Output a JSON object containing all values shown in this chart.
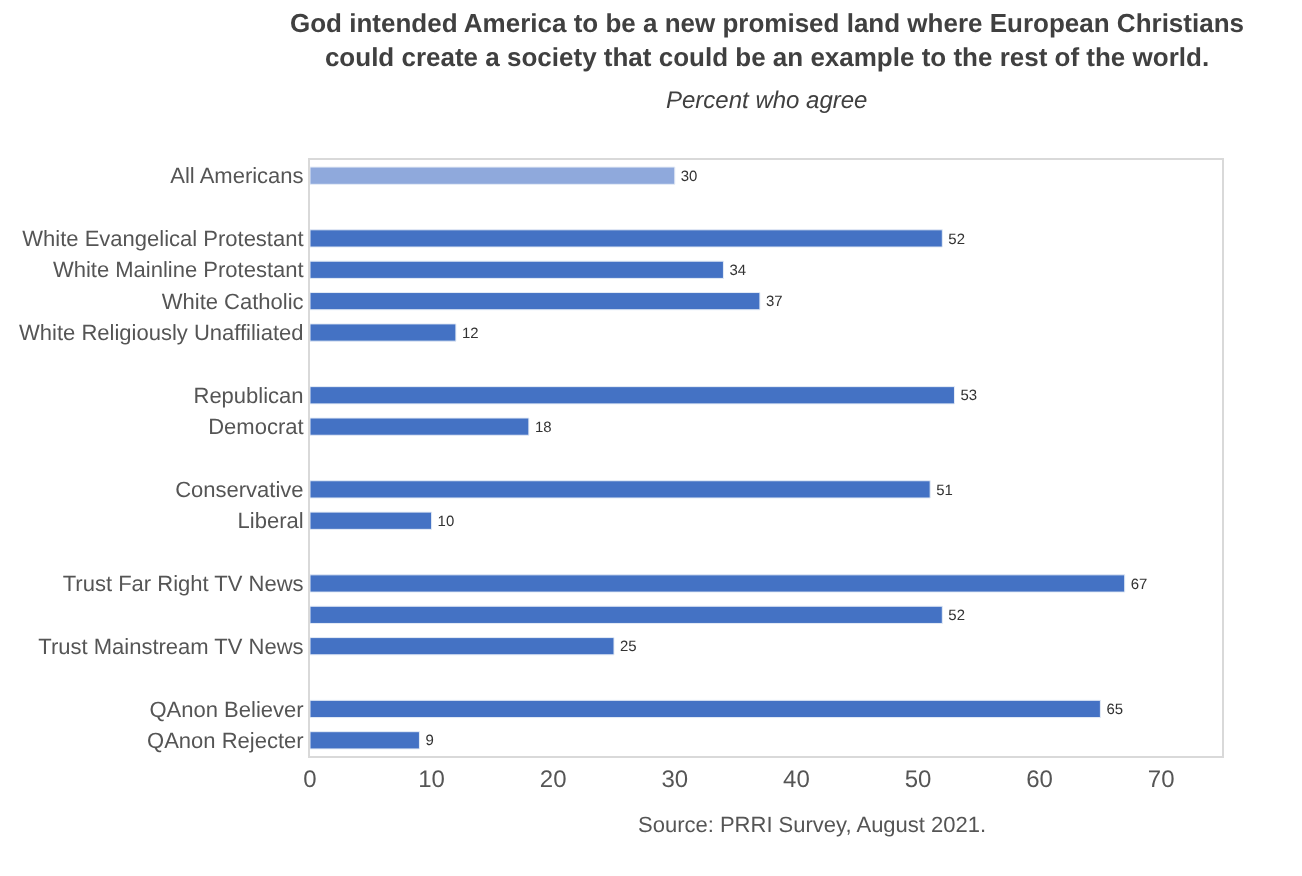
{
  "chart_data": {
    "type": "bar",
    "orientation": "horizontal",
    "title": "God intended America to be a new promised land where European Christians\ncould create a society that could be an example to the rest of the world.",
    "subtitle": "Percent who agree",
    "categories": [
      "All Americans",
      null,
      "White Evangelical Protestant",
      "White Mainline Protestant",
      "White Catholic",
      "White Religiously Unaffiliated",
      null,
      "Republican",
      "Democrat",
      null,
      "Conservative",
      "Liberal",
      null,
      "Trust Far Right TV News",
      null,
      "Trust Mainstream TV News",
      null,
      "QAnon Believer",
      "QAnon Rejecter"
    ],
    "values": [
      30,
      null,
      52,
      34,
      37,
      12,
      null,
      53,
      18,
      null,
      51,
      10,
      null,
      67,
      52,
      25,
      null,
      65,
      9
    ],
    "colors": [
      "#8fa9dc",
      null,
      "#4472c4",
      "#4472c4",
      "#4472c4",
      "#4472c4",
      null,
      "#4472c4",
      "#4472c4",
      null,
      "#4472c4",
      "#4472c4",
      null,
      "#4472c4",
      "#4472c4",
      "#4472c4",
      null,
      "#4472c4",
      "#4472c4"
    ],
    "xlim": [
      0,
      75
    ],
    "xticks": [
      0,
      10,
      20,
      30,
      40,
      50,
      60,
      70
    ],
    "data_labels": true,
    "annotations": [
      "Source: PRRI Survey, August 2021."
    ]
  }
}
